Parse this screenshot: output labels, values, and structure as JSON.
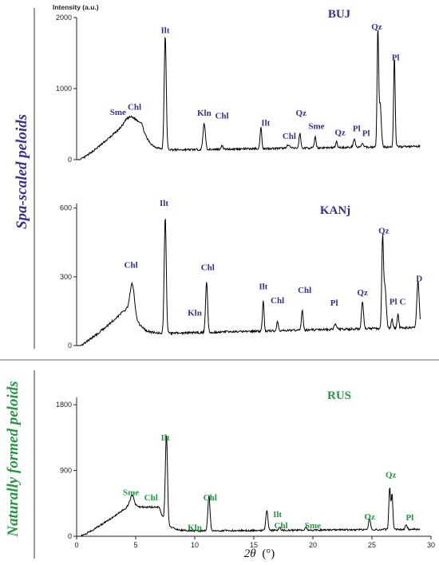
{
  "figure": {
    "ylabel": "Intensity (a.u.)",
    "xlabel_symbol": "2θ",
    "xlabel_unit": "(°)",
    "group_labels": [
      {
        "text": "Spa-scaled peloids",
        "color": "#35308c"
      },
      {
        "text": "Naturally formed peloids",
        "color": "#1f9a3e"
      }
    ]
  },
  "chart_data": [
    {
      "type": "line",
      "title": "BUJ",
      "color": "#35308c",
      "xlim": [
        0,
        30
      ],
      "ylim": [
        0,
        2000
      ],
      "yticks": [
        0,
        1000,
        2000
      ],
      "baseline": {
        "ramp_start": 0.3,
        "ramp_end": 4.2,
        "ramp_peak": 520,
        "plateau_end": 5.5,
        "decay_to": 130,
        "tail_slope": 1.2,
        "noise": 14
      },
      "peaks": [
        {
          "x": 4.6,
          "h": 80,
          "w": 0.55
        },
        {
          "x": 7.5,
          "h": 1600,
          "w": 0.12
        },
        {
          "x": 10.8,
          "h": 370,
          "w": 0.14
        },
        {
          "x": 12.3,
          "h": 60,
          "w": 0.1
        },
        {
          "x": 15.6,
          "h": 300,
          "w": 0.1
        },
        {
          "x": 17.9,
          "h": 40,
          "w": 0.2
        },
        {
          "x": 18.9,
          "h": 210,
          "w": 0.1
        },
        {
          "x": 20.2,
          "h": 150,
          "w": 0.1
        },
        {
          "x": 22.0,
          "h": 80,
          "w": 0.1
        },
        {
          "x": 23.5,
          "h": 120,
          "w": 0.12
        },
        {
          "x": 24.2,
          "h": 60,
          "w": 0.1
        },
        {
          "x": 25.5,
          "h": 1650,
          "w": 0.09
        },
        {
          "x": 25.7,
          "h": 600,
          "w": 0.13
        },
        {
          "x": 26.9,
          "h": 1280,
          "w": 0.09
        }
      ],
      "annotations": [
        {
          "text": "Sme",
          "x": 3.5,
          "y": 630
        },
        {
          "text": "Chl",
          "x": 4.9,
          "y": 700
        },
        {
          "text": "Ilt",
          "x": 7.5,
          "y": 1780
        },
        {
          "text": "Kln",
          "x": 10.8,
          "y": 620
        },
        {
          "text": "Chl",
          "x": 12.3,
          "y": 580
        },
        {
          "text": "Ilt",
          "x": 16.0,
          "y": 480
        },
        {
          "text": "Qz",
          "x": 19.0,
          "y": 620
        },
        {
          "text": "Sme",
          "x": 20.3,
          "y": 430
        },
        {
          "text": "Chl",
          "x": 18.0,
          "y": 290
        },
        {
          "text": "Qz",
          "x": 22.3,
          "y": 340
        },
        {
          "text": "Pl",
          "x": 23.7,
          "y": 400
        },
        {
          "text": "Pl",
          "x": 24.5,
          "y": 330
        },
        {
          "text": "Qz",
          "x": 25.4,
          "y": 1830
        },
        {
          "text": "Pl",
          "x": 27.0,
          "y": 1400
        }
      ]
    },
    {
      "type": "line",
      "title": "KANj",
      "color": "#35308c",
      "xlim": [
        0,
        30
      ],
      "ylim": [
        0,
        620
      ],
      "yticks": [
        0,
        300,
        600
      ],
      "baseline": {
        "ramp_start": 0.3,
        "ramp_end": 4.2,
        "ramp_peak": 160,
        "plateau_end": 4.8,
        "decay_to": 50,
        "tail_slope": 0.6,
        "noise": 5
      },
      "peaks": [
        {
          "x": 4.7,
          "h": 110,
          "w": 0.25
        },
        {
          "x": 7.5,
          "h": 510,
          "w": 0.12
        },
        {
          "x": 11.0,
          "h": 220,
          "w": 0.12
        },
        {
          "x": 15.8,
          "h": 130,
          "w": 0.1
        },
        {
          "x": 17.0,
          "h": 40,
          "w": 0.1
        },
        {
          "x": 19.1,
          "h": 90,
          "w": 0.1
        },
        {
          "x": 21.9,
          "h": 20,
          "w": 0.15
        },
        {
          "x": 24.2,
          "h": 120,
          "w": 0.12
        },
        {
          "x": 25.9,
          "h": 380,
          "w": 0.1
        },
        {
          "x": 26.1,
          "h": 180,
          "w": 0.15
        },
        {
          "x": 26.7,
          "h": 40,
          "w": 0.1
        },
        {
          "x": 27.2,
          "h": 60,
          "w": 0.1
        },
        {
          "x": 28.9,
          "h": 200,
          "w": 0.14
        }
      ],
      "annotations": [
        {
          "text": "Chl",
          "x": 4.6,
          "y": 340
        },
        {
          "text": "Ilt",
          "x": 7.4,
          "y": 610
        },
        {
          "text": "Kln",
          "x": 10.0,
          "y": 130
        },
        {
          "text": "Chl",
          "x": 11.1,
          "y": 330
        },
        {
          "text": "Ilt",
          "x": 15.8,
          "y": 245
        },
        {
          "text": "Chl",
          "x": 17.0,
          "y": 185
        },
        {
          "text": "Chl",
          "x": 19.3,
          "y": 230
        },
        {
          "text": "Pl",
          "x": 21.8,
          "y": 175
        },
        {
          "text": "Qz",
          "x": 24.2,
          "y": 220
        },
        {
          "text": "Qz",
          "x": 26.0,
          "y": 490
        },
        {
          "text": "Pl",
          "x": 26.8,
          "y": 180
        },
        {
          "text": "C",
          "x": 27.6,
          "y": 180
        },
        {
          "text": "D",
          "x": 29.0,
          "y": 280
        }
      ]
    },
    {
      "type": "line",
      "title": "RUS",
      "color": "#1f9a3e",
      "xlim": [
        0,
        30
      ],
      "ylim": [
        0,
        1900
      ],
      "yticks": [
        0,
        900,
        1800
      ],
      "baseline": {
        "ramp_start": 0.3,
        "ramp_end": 4.3,
        "ramp_peak": 400,
        "plateau_end": 7.0,
        "decay_to": 70,
        "tail_slope": 0.6,
        "noise": 12
      },
      "peaks": [
        {
          "x": 4.7,
          "h": 160,
          "w": 0.25
        },
        {
          "x": 7.6,
          "h": 1200,
          "w": 0.13
        },
        {
          "x": 11.2,
          "h": 480,
          "w": 0.13
        },
        {
          "x": 16.1,
          "h": 280,
          "w": 0.12
        },
        {
          "x": 17.2,
          "h": 40,
          "w": 0.1
        },
        {
          "x": 19.4,
          "h": 50,
          "w": 0.1
        },
        {
          "x": 24.8,
          "h": 150,
          "w": 0.12
        },
        {
          "x": 26.5,
          "h": 560,
          "w": 0.1
        },
        {
          "x": 26.7,
          "h": 480,
          "w": 0.1
        },
        {
          "x": 27.9,
          "h": 60,
          "w": 0.12
        }
      ],
      "annotations": [
        {
          "text": "Sme",
          "x": 4.6,
          "y": 560
        },
        {
          "text": "Chl",
          "x": 6.3,
          "y": 490
        },
        {
          "text": "Ilt",
          "x": 7.5,
          "y": 1310
        },
        {
          "text": "Kln",
          "x": 10.0,
          "y": 80
        },
        {
          "text": "Chl",
          "x": 11.3,
          "y": 490
        },
        {
          "text": "Ilt",
          "x": 17.0,
          "y": 260
        },
        {
          "text": "Chl",
          "x": 17.3,
          "y": 110
        },
        {
          "text": "Sme",
          "x": 20.0,
          "y": 110
        },
        {
          "text": "Qz",
          "x": 24.8,
          "y": 230
        },
        {
          "text": "Qz",
          "x": 26.6,
          "y": 800
        },
        {
          "text": "Pl",
          "x": 28.2,
          "y": 220
        }
      ]
    }
  ],
  "x_axis": {
    "ticks": [
      0,
      5,
      10,
      15,
      20,
      25,
      30
    ]
  }
}
